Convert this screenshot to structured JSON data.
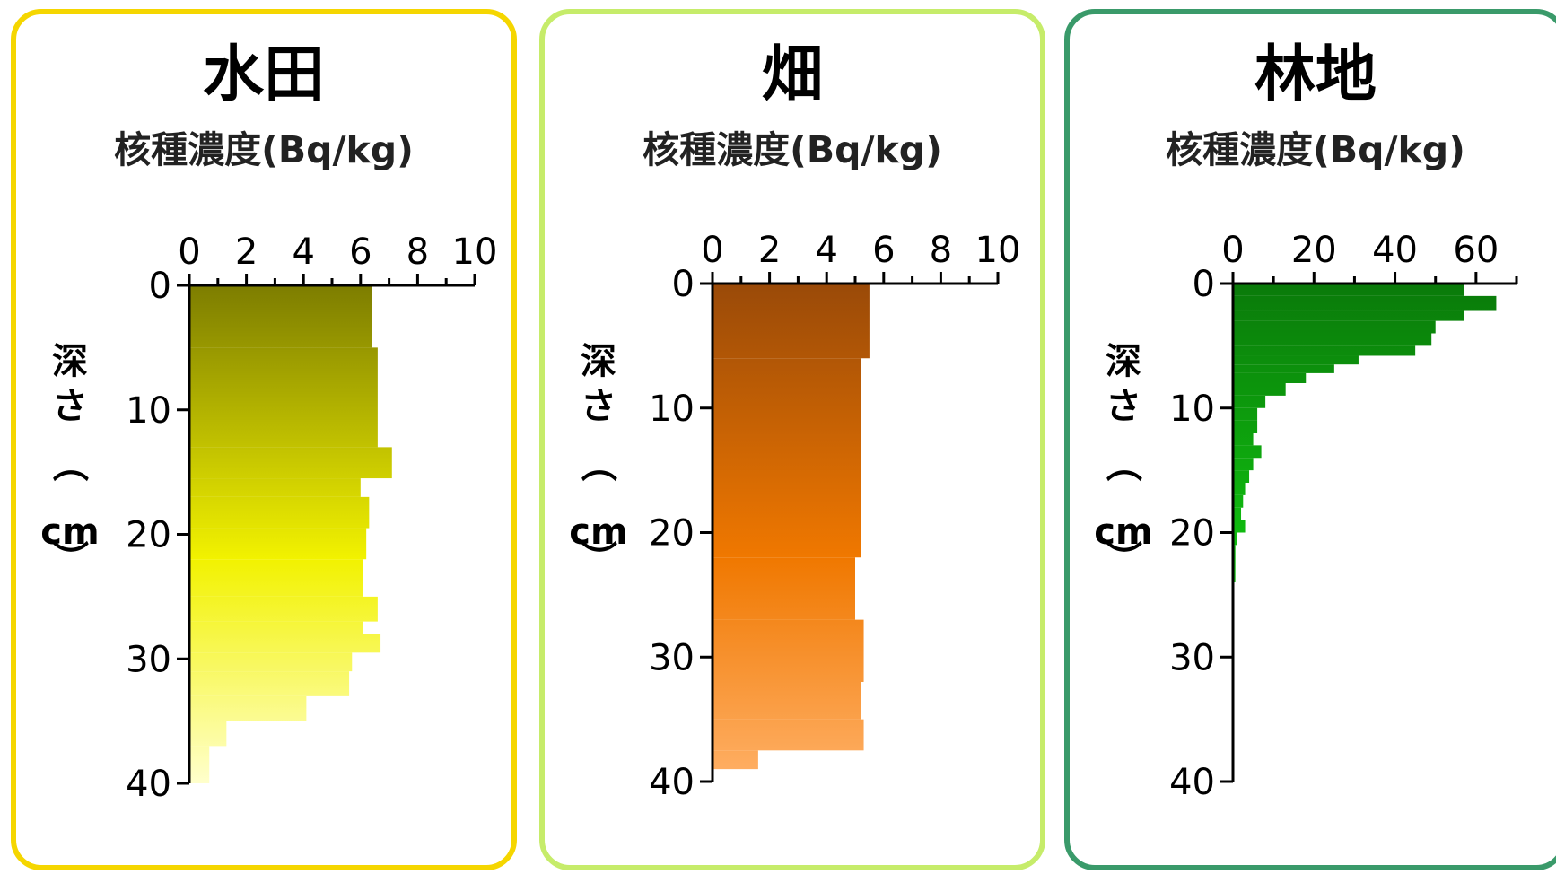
{
  "chart_data": [
    {
      "type": "bar",
      "orientation": "horizontal",
      "title": "水田",
      "xlabel": "核種濃度(Bq/kg)",
      "ylabel": "深さ（cm）",
      "xlim": [
        0,
        10
      ],
      "xticks": [
        "0",
        "2",
        "4",
        "6",
        "8",
        "10"
      ],
      "ylim": [
        0,
        40
      ],
      "yticks": [
        "0",
        "10",
        "20",
        "30",
        "40"
      ],
      "colors": {
        "border": "#f5d600",
        "bar_top": "#7d7d00",
        "bar_mid": "#f2f200",
        "bar_bottom": "#ffffcc"
      },
      "bars": [
        {
          "depth_from": 0,
          "depth_to": 5,
          "value": 6.4
        },
        {
          "depth_from": 5,
          "depth_to": 13,
          "value": 6.6
        },
        {
          "depth_from": 13,
          "depth_to": 15.5,
          "value": 7.1
        },
        {
          "depth_from": 15.5,
          "depth_to": 17,
          "value": 6.0
        },
        {
          "depth_from": 17,
          "depth_to": 19.5,
          "value": 6.3
        },
        {
          "depth_from": 19.5,
          "depth_to": 22,
          "value": 6.2
        },
        {
          "depth_from": 22,
          "depth_to": 23,
          "value": 6.1
        },
        {
          "depth_from": 23,
          "depth_to": 25,
          "value": 6.1
        },
        {
          "depth_from": 25,
          "depth_to": 27,
          "value": 6.6
        },
        {
          "depth_from": 27,
          "depth_to": 28,
          "value": 6.1
        },
        {
          "depth_from": 28,
          "depth_to": 29.5,
          "value": 6.7
        },
        {
          "depth_from": 29.5,
          "depth_to": 31,
          "value": 5.7
        },
        {
          "depth_from": 31,
          "depth_to": 33,
          "value": 5.6
        },
        {
          "depth_from": 33,
          "depth_to": 35,
          "value": 4.1
        },
        {
          "depth_from": 35,
          "depth_to": 37,
          "value": 1.3
        },
        {
          "depth_from": 37,
          "depth_to": 40,
          "value": 0.7
        }
      ]
    },
    {
      "type": "bar",
      "orientation": "horizontal",
      "title": "畑",
      "xlabel": "核種濃度(Bq/kg)",
      "ylabel": "深さ（cm）",
      "xlim": [
        0,
        10
      ],
      "xticks": [
        "0",
        "2",
        "4",
        "6",
        "8",
        "10"
      ],
      "ylim": [
        0,
        40
      ],
      "yticks": [
        "0",
        "10",
        "20",
        "30",
        "40"
      ],
      "colors": {
        "border": "#c6ec6a",
        "bar_top": "#9a4a08",
        "bar_mid": "#f07800",
        "bar_bottom": "#ffb066"
      },
      "bars": [
        {
          "depth_from": 0,
          "depth_to": 6,
          "value": 5.5
        },
        {
          "depth_from": 6,
          "depth_to": 22,
          "value": 5.2
        },
        {
          "depth_from": 22,
          "depth_to": 27,
          "value": 5.0
        },
        {
          "depth_from": 27,
          "depth_to": 32,
          "value": 5.3
        },
        {
          "depth_from": 32,
          "depth_to": 35,
          "value": 5.2
        },
        {
          "depth_from": 35,
          "depth_to": 37.5,
          "value": 5.3
        },
        {
          "depth_from": 37.5,
          "depth_to": 39,
          "value": 1.6
        }
      ]
    },
    {
      "type": "bar",
      "orientation": "horizontal",
      "title": "林地",
      "xlabel": "核種濃度(Bq/kg)",
      "ylabel": "深さ（cm）",
      "xlim": [
        0,
        70
      ],
      "xticks": [
        "0",
        "20",
        "40",
        "60"
      ],
      "ylim": [
        0,
        40
      ],
      "yticks": [
        "0",
        "10",
        "20",
        "30",
        "40"
      ],
      "colors": {
        "border": "#3a9a6a",
        "bar_top": "#0a7a0a",
        "bar_mid": "#10c010",
        "bar_bottom": "#90f090"
      },
      "bars": [
        {
          "depth_from": 0,
          "depth_to": 1,
          "value": 57
        },
        {
          "depth_from": 1,
          "depth_to": 2.2,
          "value": 65
        },
        {
          "depth_from": 2.2,
          "depth_to": 3,
          "value": 57
        },
        {
          "depth_from": 3,
          "depth_to": 4,
          "value": 50
        },
        {
          "depth_from": 4,
          "depth_to": 5,
          "value": 49
        },
        {
          "depth_from": 5,
          "depth_to": 5.8,
          "value": 45
        },
        {
          "depth_from": 5.8,
          "depth_to": 6.5,
          "value": 31
        },
        {
          "depth_from": 6.5,
          "depth_to": 7.2,
          "value": 25
        },
        {
          "depth_from": 7.2,
          "depth_to": 8,
          "value": 18
        },
        {
          "depth_from": 8,
          "depth_to": 9,
          "value": 13
        },
        {
          "depth_from": 9,
          "depth_to": 10,
          "value": 8
        },
        {
          "depth_from": 10,
          "depth_to": 11,
          "value": 6
        },
        {
          "depth_from": 11,
          "depth_to": 12,
          "value": 6
        },
        {
          "depth_from": 12,
          "depth_to": 13,
          "value": 5
        },
        {
          "depth_from": 13,
          "depth_to": 14,
          "value": 7
        },
        {
          "depth_from": 14,
          "depth_to": 15,
          "value": 5
        },
        {
          "depth_from": 15,
          "depth_to": 16,
          "value": 4
        },
        {
          "depth_from": 16,
          "depth_to": 17,
          "value": 3
        },
        {
          "depth_from": 17,
          "depth_to": 18,
          "value": 2.5
        },
        {
          "depth_from": 18,
          "depth_to": 19,
          "value": 2
        },
        {
          "depth_from": 19,
          "depth_to": 20,
          "value": 3
        },
        {
          "depth_from": 20,
          "depth_to": 21,
          "value": 1
        },
        {
          "depth_from": 21,
          "depth_to": 24,
          "value": 0.6
        }
      ]
    }
  ]
}
